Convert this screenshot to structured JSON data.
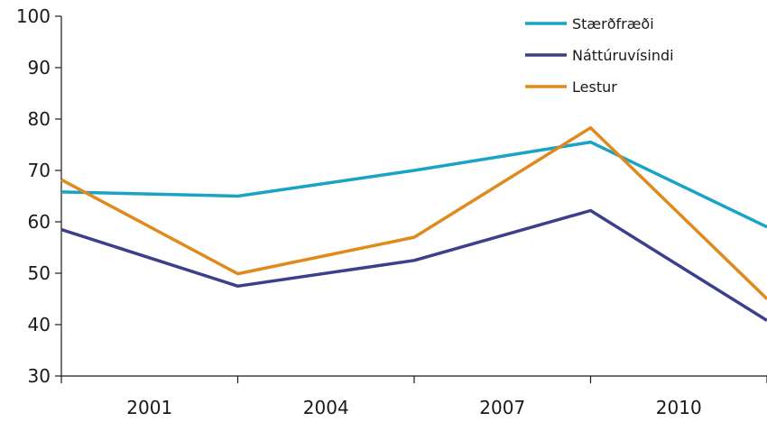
{
  "chart_data": {
    "type": "line",
    "title": "",
    "xlabel": "",
    "ylabel": "",
    "x": [
      2000,
      2003,
      2006,
      2009,
      2012
    ],
    "xticks": [
      "2001",
      "2004",
      "2007",
      "2010"
    ],
    "xlim": [
      2000,
      2012
    ],
    "ylim": [
      30,
      100
    ],
    "yticks": [
      "30",
      "40",
      "50",
      "60",
      "70",
      "80",
      "90",
      "100"
    ],
    "grid": false,
    "legend_position": "top-right",
    "series": [
      {
        "name": "Stærðfræði",
        "color": "#1aa3c4",
        "values": [
          65.8,
          65.0,
          70.0,
          75.5,
          59.0
        ]
      },
      {
        "name": "Náttúruvísindi",
        "color": "#3b3f8c",
        "values": [
          58.5,
          47.5,
          52.5,
          62.2,
          40.8
        ]
      },
      {
        "name": "Lestur",
        "color": "#e08a1e",
        "values": [
          68.2,
          49.9,
          57.0,
          78.3,
          45.0
        ]
      }
    ]
  }
}
